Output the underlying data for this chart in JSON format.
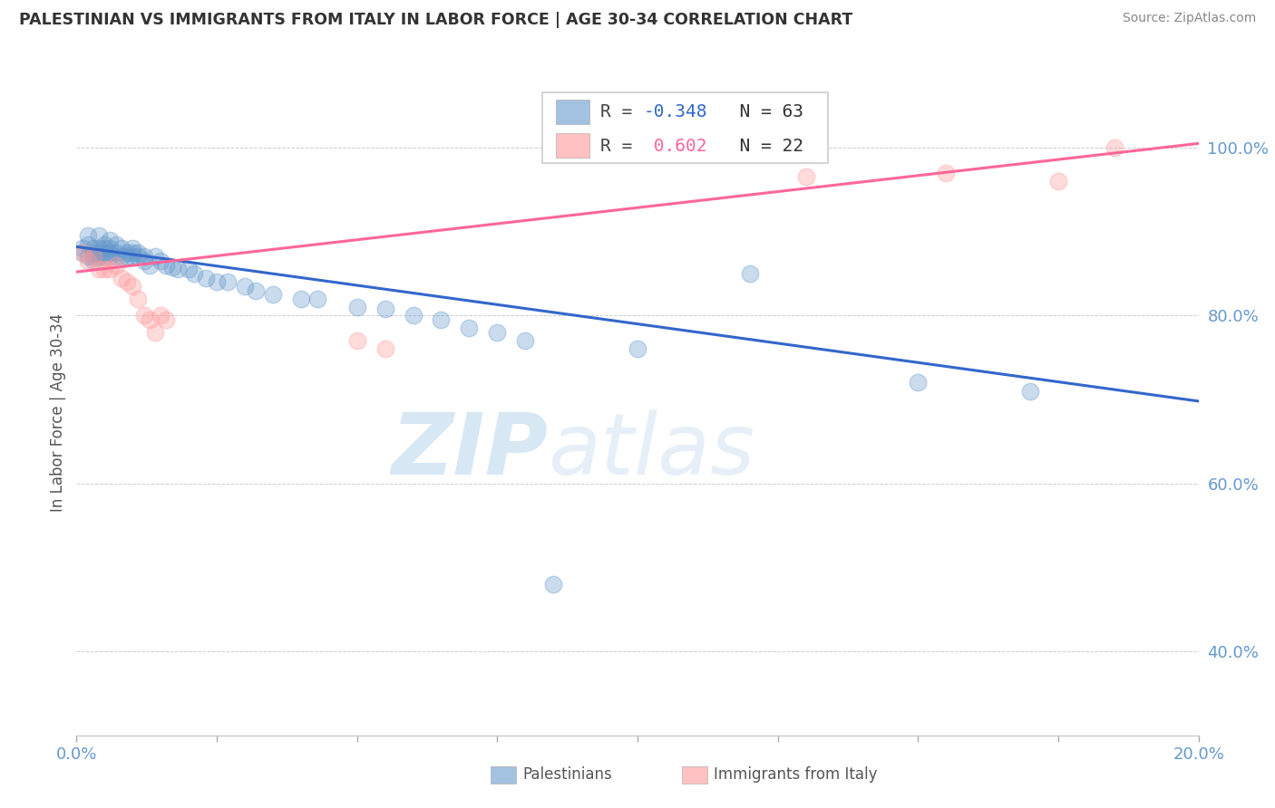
{
  "title": "PALESTINIAN VS IMMIGRANTS FROM ITALY IN LABOR FORCE | AGE 30-34 CORRELATION CHART",
  "source": "Source: ZipAtlas.com",
  "ylabel": "In Labor Force | Age 30-34",
  "xlim": [
    0.0,
    0.2
  ],
  "ylim": [
    0.3,
    1.07
  ],
  "y_ticks": [
    0.4,
    0.6,
    0.8,
    1.0
  ],
  "y_tick_labels": [
    "40.0%",
    "60.0%",
    "80.0%",
    "100.0%"
  ],
  "blue_R": -0.348,
  "blue_N": 63,
  "pink_R": 0.602,
  "pink_N": 22,
  "blue_color": "#6699CC",
  "pink_color": "#FF9999",
  "blue_line_color": "#3366CC",
  "pink_line_color": "#FF6699",
  "watermark_zip": "ZIP",
  "watermark_atlas": "atlas",
  "blue_scatter_x": [
    0.001,
    0.001,
    0.002,
    0.002,
    0.002,
    0.003,
    0.003,
    0.003,
    0.003,
    0.004,
    0.004,
    0.004,
    0.004,
    0.005,
    0.005,
    0.005,
    0.005,
    0.006,
    0.006,
    0.006,
    0.006,
    0.007,
    0.007,
    0.007,
    0.008,
    0.008,
    0.009,
    0.009,
    0.01,
    0.01,
    0.01,
    0.011,
    0.011,
    0.012,
    0.012,
    0.013,
    0.014,
    0.015,
    0.016,
    0.017,
    0.018,
    0.02,
    0.021,
    0.023,
    0.025,
    0.027,
    0.03,
    0.032,
    0.035,
    0.04,
    0.043,
    0.05,
    0.055,
    0.06,
    0.065,
    0.07,
    0.075,
    0.08,
    0.1,
    0.12,
    0.085,
    0.15,
    0.17
  ],
  "blue_scatter_y": [
    0.88,
    0.875,
    0.885,
    0.87,
    0.895,
    0.88,
    0.875,
    0.87,
    0.865,
    0.88,
    0.875,
    0.87,
    0.895,
    0.875,
    0.885,
    0.87,
    0.88,
    0.875,
    0.87,
    0.88,
    0.89,
    0.875,
    0.87,
    0.885,
    0.87,
    0.88,
    0.87,
    0.875,
    0.875,
    0.87,
    0.88,
    0.87,
    0.875,
    0.87,
    0.865,
    0.86,
    0.87,
    0.865,
    0.86,
    0.858,
    0.855,
    0.855,
    0.85,
    0.845,
    0.84,
    0.84,
    0.835,
    0.83,
    0.825,
    0.82,
    0.82,
    0.81,
    0.808,
    0.8,
    0.795,
    0.785,
    0.78,
    0.77,
    0.76,
    0.85,
    0.48,
    0.72,
    0.71
  ],
  "pink_scatter_x": [
    0.001,
    0.002,
    0.003,
    0.004,
    0.005,
    0.006,
    0.007,
    0.008,
    0.009,
    0.01,
    0.011,
    0.012,
    0.013,
    0.014,
    0.015,
    0.016,
    0.05,
    0.055,
    0.13,
    0.155,
    0.175,
    0.185
  ],
  "pink_scatter_y": [
    0.875,
    0.865,
    0.87,
    0.855,
    0.855,
    0.855,
    0.86,
    0.845,
    0.84,
    0.835,
    0.82,
    0.8,
    0.795,
    0.78,
    0.8,
    0.795,
    0.77,
    0.76,
    0.965,
    0.97,
    0.96,
    1.0
  ],
  "blue_trend_x0": 0.0,
  "blue_trend_x1": 0.2,
  "blue_trend_y0": 0.882,
  "blue_trend_y1": 0.698,
  "pink_trend_x0": 0.0,
  "pink_trend_x1": 0.2,
  "pink_trend_y0": 0.852,
  "pink_trend_y1": 1.005
}
